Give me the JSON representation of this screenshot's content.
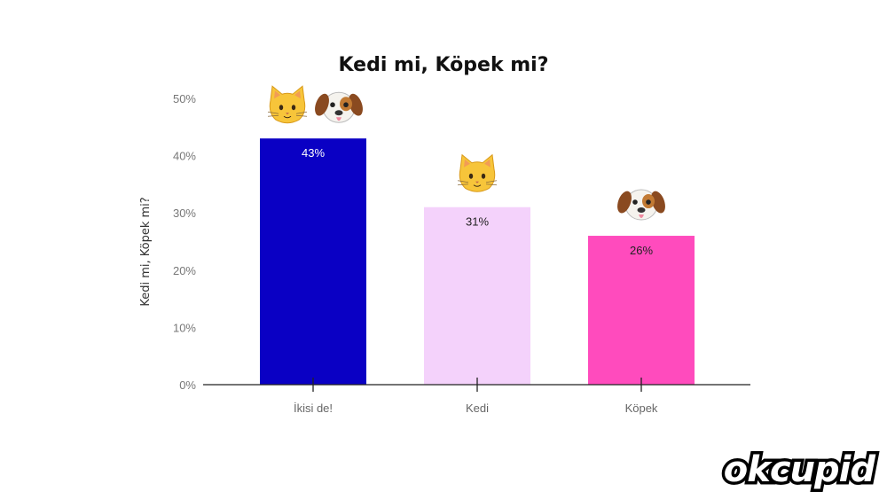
{
  "chart_data": {
    "type": "bar",
    "title": "Kedi mi, Köpek mi?",
    "ylabel": "Kedi mi, Köpek mi?",
    "xlabel": "",
    "categories": [
      "İkisi de!",
      "Kedi",
      "Köpek"
    ],
    "values": [
      43,
      31,
      26
    ],
    "value_labels": [
      "43%",
      "31%",
      "26%"
    ],
    "ylim": [
      0,
      50
    ],
    "yticks": [
      "0%",
      "10%",
      "20%",
      "30%",
      "40%",
      "50%"
    ],
    "grid": false,
    "colors": [
      "#0a00c4",
      "#f4d2fb",
      "#ff4bbd"
    ],
    "value_label_colors": [
      "#ffffff",
      "#222222",
      "#222222"
    ],
    "bar_icons": [
      [
        "cat-face-icon",
        "dog-face-icon"
      ],
      [
        "cat-face-icon"
      ],
      [
        "dog-face-icon"
      ]
    ]
  },
  "brand": {
    "logo_text": "okcupid"
  }
}
